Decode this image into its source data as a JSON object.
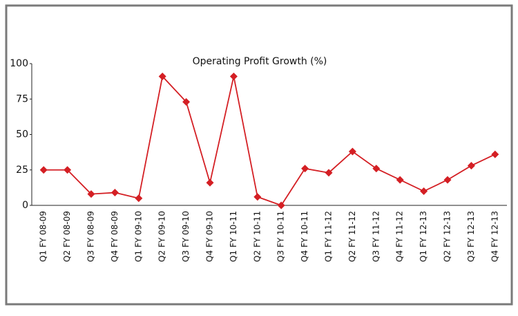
{
  "chart_data": {
    "type": "line",
    "title": "Operating Profit Growth (%)",
    "categories": [
      "Q1 FY 08-09",
      "Q2 FY 08-09",
      "Q3 FY 08-09",
      "Q4 FY 08-09",
      "Q1 FY 09-10",
      "Q2 FY 09-10",
      "Q3 FY 09-10",
      "Q4 FY 09-10",
      "Q1 FY 10-11",
      "Q2 FY 10-11",
      "Q3 FY 10-11",
      "Q4 FY 10-11",
      "Q1 FY 11-12",
      "Q2 FY 11-12",
      "Q3 FY 11-12",
      "Q4 FY 11-12",
      "Q1 FY 12-13",
      "Q2 FY 12-13",
      "Q3 FY 12-13",
      "Q4 FY 12-13"
    ],
    "values": [
      25,
      25,
      8,
      9,
      5,
      91,
      73,
      16,
      91,
      6,
      0,
      26,
      23,
      38,
      26,
      18,
      10,
      18,
      28,
      36
    ],
    "color": "#d41f24",
    "ylim": [
      0,
      100
    ],
    "yticks": [
      0,
      25,
      50,
      75,
      100
    ],
    "grid": false
  }
}
